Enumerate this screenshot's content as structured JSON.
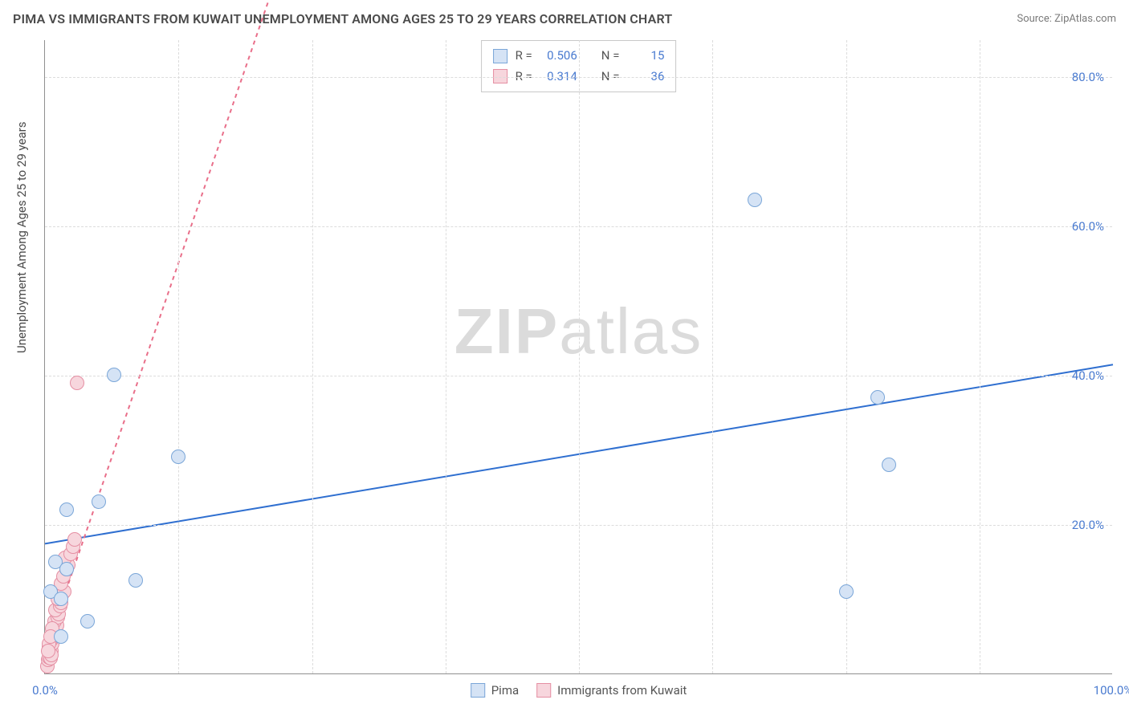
{
  "title": "PIMA VS IMMIGRANTS FROM KUWAIT UNEMPLOYMENT AMONG AGES 25 TO 29 YEARS CORRELATION CHART",
  "source": "Source: ZipAtlas.com",
  "ylabel": "Unemployment Among Ages 25 to 29 years",
  "watermark_bold": "ZIP",
  "watermark_rest": "atlas",
  "chart": {
    "type": "scatter",
    "xlim": [
      0,
      100
    ],
    "ylim": [
      0,
      85
    ],
    "xticks": [
      {
        "v": 0,
        "label": "0.0%"
      },
      {
        "v": 100,
        "label": "100.0%"
      }
    ],
    "xgrid": [
      12.5,
      25,
      37.5,
      50,
      62.5,
      75,
      87.5
    ],
    "yticks": [
      {
        "v": 20,
        "label": "20.0%"
      },
      {
        "v": 40,
        "label": "40.0%"
      },
      {
        "v": 60,
        "label": "60.0%"
      },
      {
        "v": 80,
        "label": "80.0%"
      }
    ],
    "background_color": "#ffffff",
    "grid_color": "#dcdcdc",
    "axis_color": "#909090",
    "tick_color": "#4a7bd0",
    "label_fontsize": 15,
    "marker_radius": 9,
    "series": [
      {
        "name": "Pima",
        "fill": "#d5e3f5",
        "stroke": "#7aa6d8",
        "trend": {
          "color": "#2f6fd0",
          "width": 2,
          "dash": "none",
          "y_at_x0": 17.5,
          "y_at_x100": 41.5
        },
        "stats": {
          "R": "0.506",
          "N": "15"
        },
        "points": [
          {
            "x": 0.5,
            "y": 11
          },
          {
            "x": 1.0,
            "y": 15
          },
          {
            "x": 1.5,
            "y": 10
          },
          {
            "x": 2.0,
            "y": 14
          },
          {
            "x": 2.0,
            "y": 22
          },
          {
            "x": 4.0,
            "y": 7
          },
          {
            "x": 5.0,
            "y": 23
          },
          {
            "x": 8.5,
            "y": 12.5
          },
          {
            "x": 6.5,
            "y": 40
          },
          {
            "x": 12.5,
            "y": 29
          },
          {
            "x": 66.5,
            "y": 63.5
          },
          {
            "x": 78,
            "y": 37
          },
          {
            "x": 79,
            "y": 28
          },
          {
            "x": 75,
            "y": 11
          },
          {
            "x": 1.5,
            "y": 5
          }
        ]
      },
      {
        "name": "Immigrants from Kuwait",
        "fill": "#f7d6dd",
        "stroke": "#e58fa3",
        "trend": {
          "color": "#e96f8a",
          "width": 2,
          "dash": "5,5",
          "y_at_x0": 3,
          "y_at_x100": 420
        },
        "stats": {
          "R": "0.314",
          "N": "36"
        },
        "points": [
          {
            "x": 0.2,
            "y": 1
          },
          {
            "x": 0.3,
            "y": 1.8
          },
          {
            "x": 0.4,
            "y": 2.2
          },
          {
            "x": 0.5,
            "y": 2.6
          },
          {
            "x": 0.6,
            "y": 3
          },
          {
            "x": 0.4,
            "y": 3.5
          },
          {
            "x": 0.7,
            "y": 4
          },
          {
            "x": 0.6,
            "y": 4.5
          },
          {
            "x": 0.8,
            "y": 5
          },
          {
            "x": 0.8,
            "y": 5.5
          },
          {
            "x": 1.0,
            "y": 6
          },
          {
            "x": 1.1,
            "y": 6.5
          },
          {
            "x": 0.9,
            "y": 7
          },
          {
            "x": 1.2,
            "y": 7.5
          },
          {
            "x": 1.3,
            "y": 8
          },
          {
            "x": 1.0,
            "y": 8.5
          },
          {
            "x": 1.4,
            "y": 9
          },
          {
            "x": 1.5,
            "y": 9.5
          },
          {
            "x": 1.2,
            "y": 10
          },
          {
            "x": 1.6,
            "y": 10.5
          },
          {
            "x": 1.8,
            "y": 11
          },
          {
            "x": 1.5,
            "y": 12
          },
          {
            "x": 1.7,
            "y": 13
          },
          {
            "x": 2.0,
            "y": 14
          },
          {
            "x": 2.2,
            "y": 14.5
          },
          {
            "x": 1.9,
            "y": 15.5
          },
          {
            "x": 2.4,
            "y": 16
          },
          {
            "x": 2.6,
            "y": 17
          },
          {
            "x": 2.8,
            "y": 18
          },
          {
            "x": 0.5,
            "y": 2
          },
          {
            "x": 0.6,
            "y": 2.5
          },
          {
            "x": 0.4,
            "y": 4
          },
          {
            "x": 0.7,
            "y": 6
          },
          {
            "x": 0.3,
            "y": 3
          },
          {
            "x": 0.5,
            "y": 5
          },
          {
            "x": 3.0,
            "y": 39
          }
        ]
      }
    ]
  },
  "stats_legend": {
    "r_label": "R =",
    "n_label": "N ="
  },
  "bottom_legend": {
    "items": [
      "Pima",
      "Immigrants from Kuwait"
    ]
  }
}
